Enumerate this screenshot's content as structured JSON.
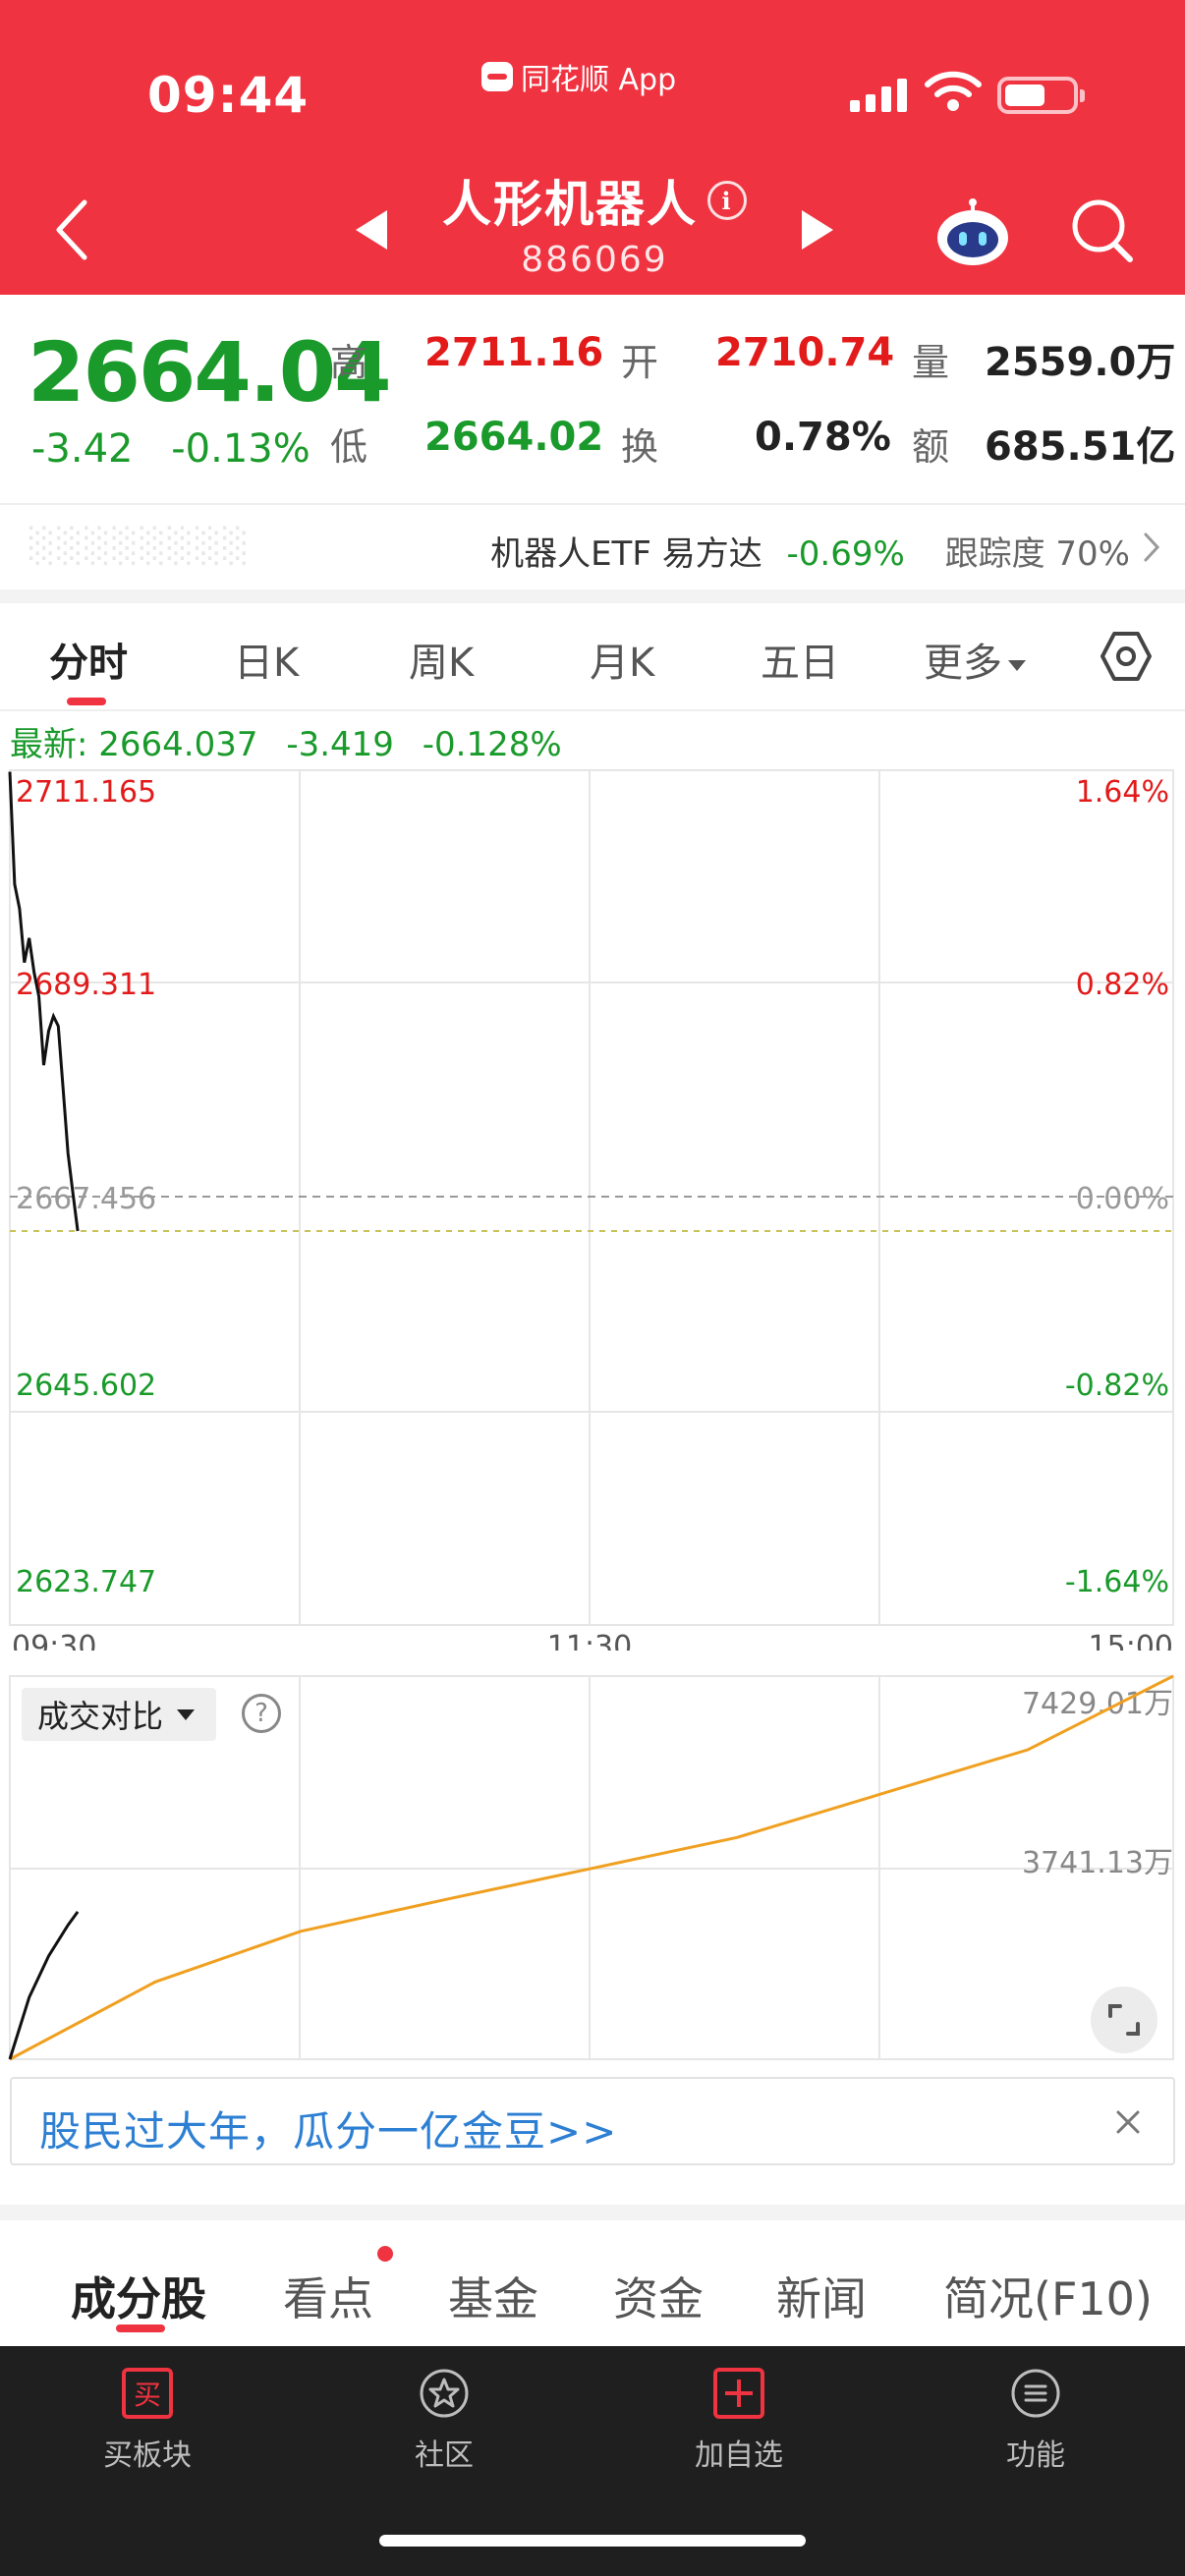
{
  "status": {
    "time": "09:44",
    "app_name": "同花顺 App"
  },
  "header": {
    "title": "人形机器人",
    "code": "886069"
  },
  "quote": {
    "price": "2664.04",
    "change": "-3.42",
    "change_pct": "-0.13%",
    "high_label": "高",
    "high": "2711.16",
    "low_label": "低",
    "low": "2664.02",
    "open_label": "开",
    "open": "2710.74",
    "turnover_label": "换",
    "turnover": "0.78%",
    "volume_label": "量",
    "volume": "2559.0万",
    "amount_label": "额",
    "amount": "685.51亿"
  },
  "etf": {
    "name": "机器人ETF 易方达",
    "change_pct": "-0.69%",
    "tracking": "跟踪度 70%"
  },
  "period_tabs": [
    "分时",
    "日K",
    "周K",
    "月K",
    "五日",
    "更多"
  ],
  "latest": {
    "label": "最新: 2664.037",
    "change": "-3.419",
    "change_pct": "-0.128%"
  },
  "chart_labels": {
    "y_left": [
      "2711.165",
      "2689.311",
      "2667.456",
      "2645.602",
      "2623.747"
    ],
    "y_right": [
      "1.64%",
      "0.82%",
      "0.00%",
      "-0.82%",
      "-1.64%"
    ],
    "x": [
      "09:30",
      "11:30",
      "15:00"
    ],
    "vol_top": "7429.01万",
    "vol_mid": "3741.13万"
  },
  "chart_data": {
    "type": "line",
    "ylim": [
      2623.747,
      2711.165
    ],
    "price_series": {
      "x": [
        "09:30",
        "09:31",
        "09:32",
        "09:33",
        "09:34",
        "09:35",
        "09:36",
        "09:37",
        "09:38",
        "09:39",
        "09:40",
        "09:41",
        "09:42",
        "09:43",
        "09:44"
      ],
      "values": [
        2711.0,
        2699.5,
        2697.0,
        2691.5,
        2694.0,
        2690.5,
        2688.0,
        2681.0,
        2684.5,
        2686.0,
        2685.0,
        2678.5,
        2672.0,
        2668.0,
        2664.04
      ]
    },
    "volume_compare": {
      "vol_ylim": [
        0,
        7429.01
      ],
      "today_x": [
        "09:30",
        "09:34",
        "09:38",
        "09:42",
        "09:44"
      ],
      "today_values": [
        0,
        1200,
        2000,
        2600,
        2860
      ],
      "prev_x": [
        "09:30",
        "10:00",
        "10:30",
        "11:00",
        "11:30",
        "13:30",
        "14:00",
        "14:30",
        "15:00"
      ],
      "prev_values": [
        0,
        1500,
        2480,
        3100,
        3700,
        4300,
        5150,
        6000,
        7429.01
      ]
    }
  },
  "vol_dropdown": "成交对比",
  "banner": {
    "text": "股民过大年，瓜分一亿金豆>>"
  },
  "detail_tabs": [
    "成分股",
    "看点",
    "基金",
    "资金",
    "新闻",
    "简况(F10)"
  ],
  "toolbar": {
    "buy": "买板块",
    "community": "社区",
    "add": "加自选",
    "functions": "功能"
  },
  "colors": {
    "brand_red": "#ef3340",
    "up_red": "#e21a1a",
    "down_green": "#1a9a2b",
    "volume_orange": "#f0a020"
  }
}
